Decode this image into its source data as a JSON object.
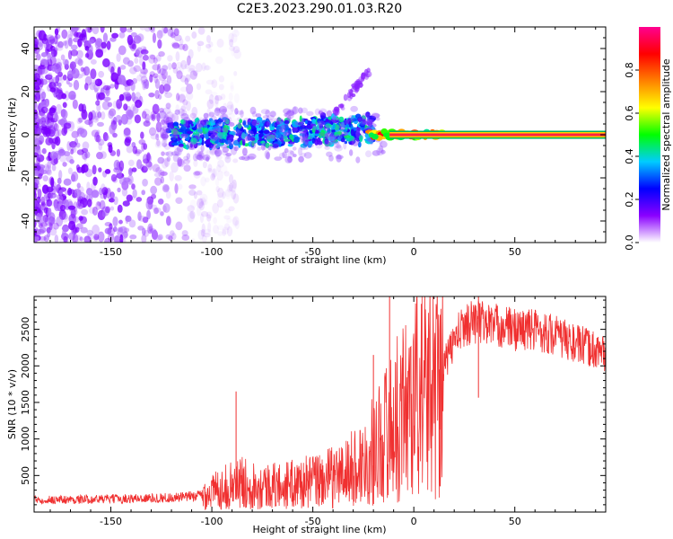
{
  "title": "C2E3.2023.290.01.03.R20",
  "chart_data": [
    {
      "type": "heatmap",
      "xlabel": "Height of straight line (km)",
      "ylabel": "Frequency (Hz)",
      "xlim": [
        -188,
        95
      ],
      "ylim": [
        -50,
        50
      ],
      "x_ticks": [
        -150,
        -100,
        -50,
        0,
        50
      ],
      "y_ticks": [
        -40,
        -20,
        0,
        20,
        40
      ],
      "colorbar": {
        "label": "Normalized spectral amplitude",
        "range": [
          0,
          1
        ],
        "ticks": [
          0.0,
          0.2,
          0.4,
          0.6,
          0.8
        ],
        "colormap": [
          "#ffffff",
          "#8a00ff",
          "#0000ff",
          "#00ccff",
          "#00ff00",
          "#ffff00",
          "#ff8000",
          "#ff0000",
          "#ff0090"
        ]
      },
      "structures": [
        {
          "name_hidden": true,
          "kind": "noise",
          "x_range": [
            -188,
            -105
          ],
          "freq_range": [
            -50,
            50
          ],
          "amplitude": 0.05
        },
        {
          "kind": "band",
          "x_range": [
            -122,
            -20
          ],
          "freq_center": 0,
          "freq_halfwidth": 5,
          "amplitude": 0.35
        },
        {
          "kind": "tail",
          "x_from": -40,
          "x_to": -22,
          "freq_from": 8,
          "freq_to": 30,
          "amplitude": 0.1
        },
        {
          "kind": "line",
          "x_range": [
            -20,
            95
          ],
          "freq_center": 0,
          "amplitude": 0.95
        }
      ]
    },
    {
      "type": "line",
      "xlabel": "Height of straight line (km)",
      "ylabel": "SNR (10 * v/v)",
      "xlim": [
        -188,
        95
      ],
      "ylim": [
        0,
        2950
      ],
      "x_ticks": [
        -150,
        -100,
        -50,
        0,
        50
      ],
      "y_ticks": [
        500,
        1000,
        1500,
        2000,
        2500
      ],
      "color": "#f03030",
      "series": [
        {
          "x": [
            -188,
            -170,
            -150,
            -130,
            -115,
            -105,
            -95,
            -85,
            -75,
            -65,
            -55,
            -45,
            -35,
            -25,
            -20,
            -15,
            -10,
            -5,
            0,
            5,
            10,
            15,
            20,
            25,
            30,
            40,
            50,
            60,
            70,
            80,
            95
          ],
          "y": [
            170,
            170,
            180,
            190,
            200,
            230,
            330,
            400,
            360,
            360,
            400,
            440,
            520,
            680,
            840,
            1050,
            1200,
            1400,
            1600,
            1700,
            1700,
            2000,
            2350,
            2560,
            2620,
            2560,
            2500,
            2500,
            2420,
            2300,
            2180
          ]
        }
      ],
      "spikes": [
        {
          "x": -88,
          "y": 1650
        },
        {
          "x": -20,
          "y": 2150
        },
        {
          "x": -12,
          "y": 2950
        },
        {
          "x": 13,
          "y": 2700
        },
        {
          "x": 32,
          "y": 2950
        }
      ]
    }
  ]
}
